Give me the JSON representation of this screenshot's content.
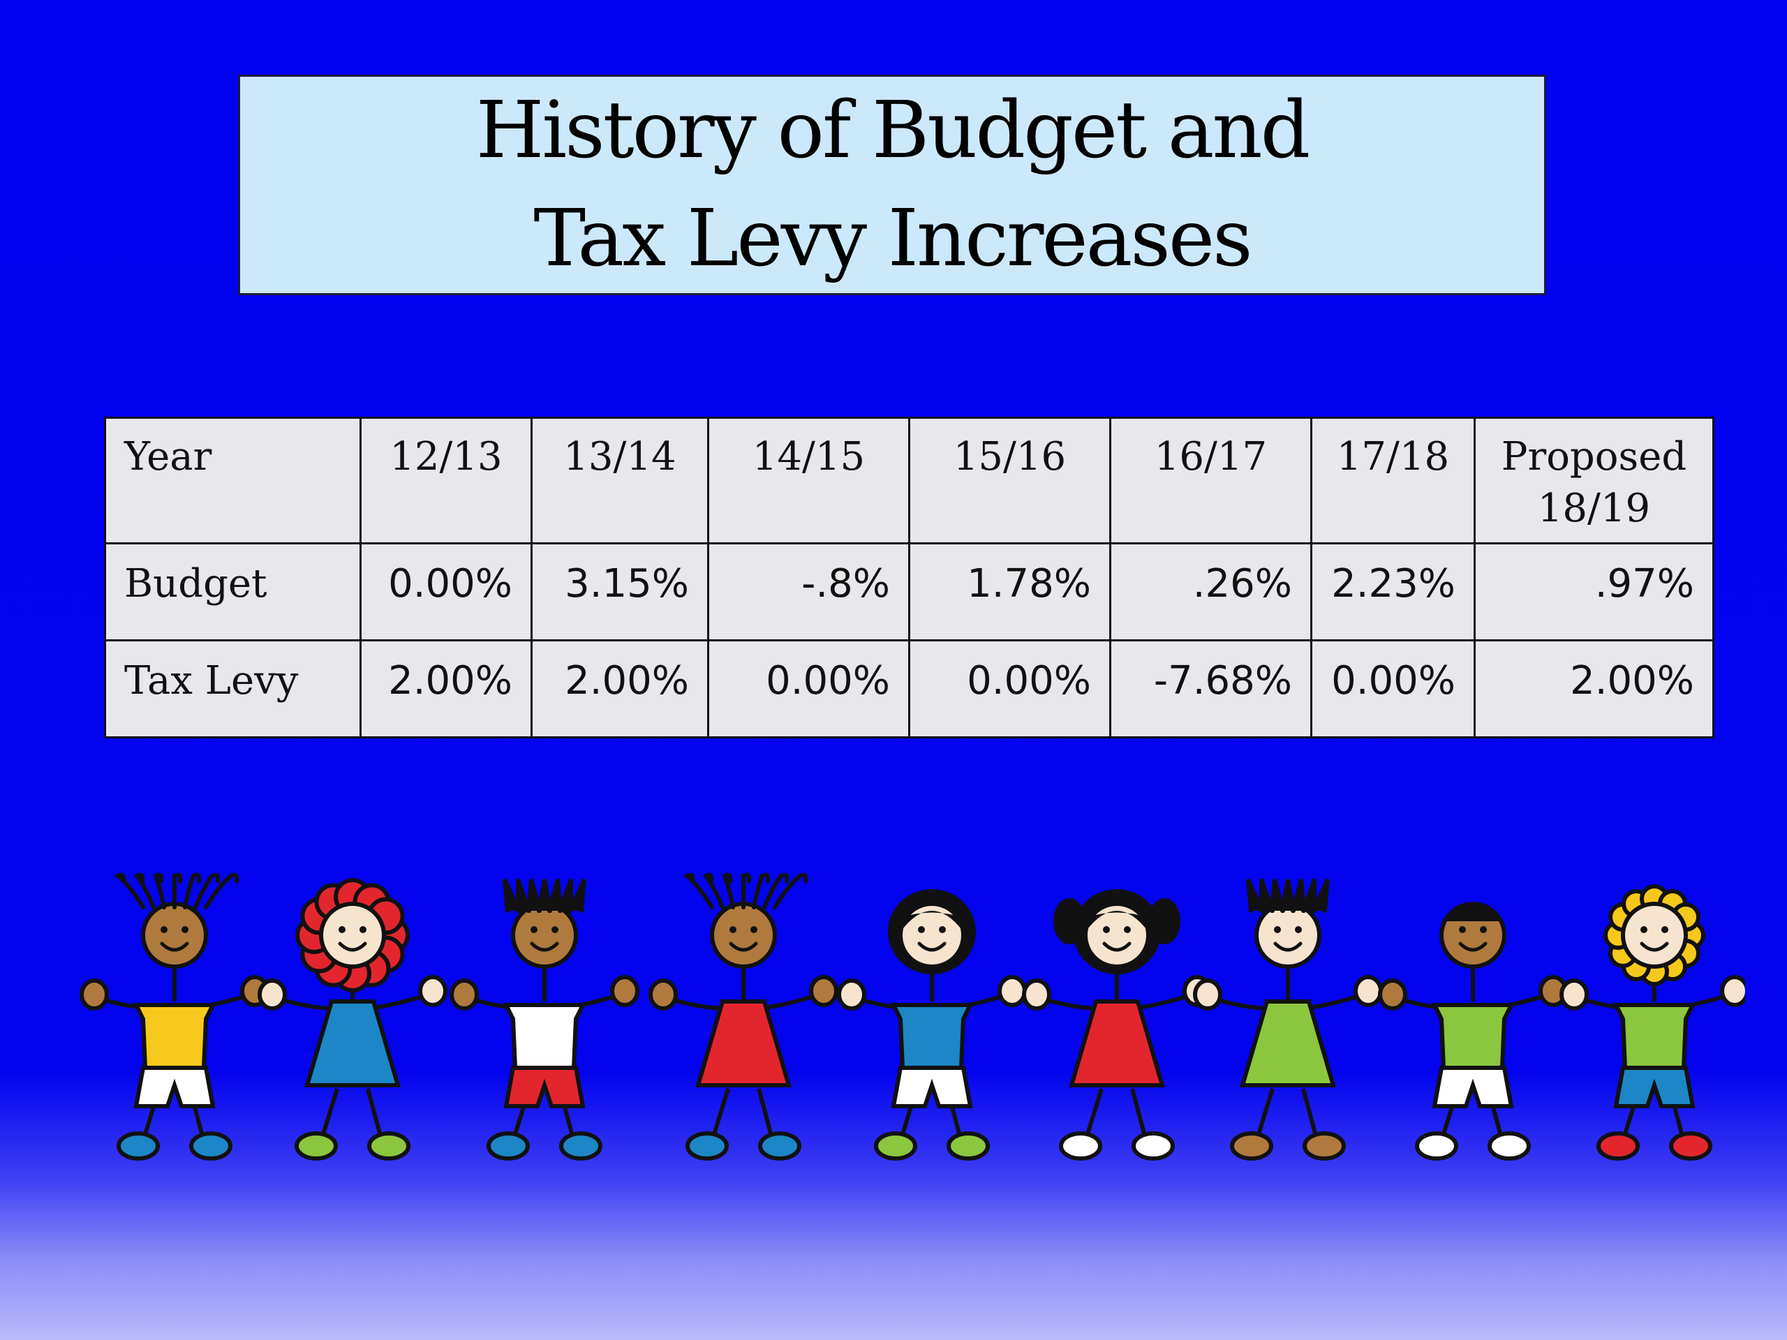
{
  "slide": {
    "title_line1": "History of Budget and",
    "title_line2": "Tax Levy Increases"
  },
  "table": {
    "header_label": "Year",
    "years": [
      "12/13",
      "13/14",
      "14/15",
      "15/16",
      "16/17",
      "17/18",
      "Proposed\n18/19"
    ],
    "rows": [
      {
        "label": "Budget",
        "values": [
          "0.00%",
          "3.15%",
          "-.8%",
          "1.78%",
          ".26%",
          "2.23%",
          ".97%"
        ]
      },
      {
        "label": "Tax Levy",
        "values": [
          "2.00%",
          "2.00%",
          "0.00%",
          "0.00%",
          "-7.68%",
          "0.00%",
          "2.00%"
        ]
      }
    ]
  },
  "illustration": {
    "name": "children-holding-hands-clipart",
    "count": 9,
    "colors": {
      "skin_dark": "#b07a3e",
      "skin_light": "#f6e4cf",
      "yellow": "#f7c81c",
      "red": "#e3262e",
      "blue": "#1c86c6",
      "green": "#8cc63e",
      "white": "#ffffff",
      "outline": "#111111"
    }
  }
}
